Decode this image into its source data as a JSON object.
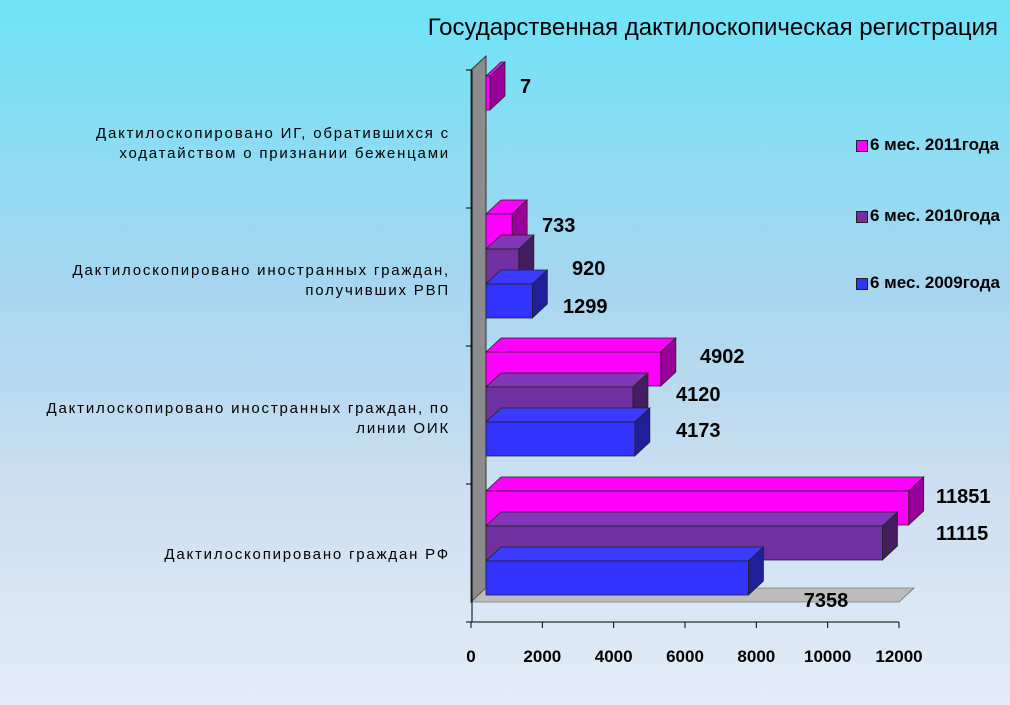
{
  "chart_data": {
    "type": "bar",
    "orientation": "horizontal",
    "title": "Государственная дактилоскопическая регистрация",
    "categories": [
      "Дактилоскопировано граждан РФ",
      "Дактилоскопировано иностранных граждан, по линии ОИК",
      "Дактилоскопировано иностранных граждан, получивших РВП",
      "Дактилоскопировано ИГ, обратившихся с ходатайством о признании беженцами"
    ],
    "series": [
      {
        "name": "6 мес. 2011года",
        "color": "#ff00ff",
        "values": [
          11851,
          4902,
          733,
          7
        ]
      },
      {
        "name": "6 мес. 2010года",
        "color": "#7030a0",
        "values": [
          11115,
          4120,
          920,
          null
        ]
      },
      {
        "name": "6 мес. 2009года",
        "color": "#3333ff",
        "values": [
          7358,
          4173,
          1299,
          null
        ]
      }
    ],
    "xticks": [
      "0",
      "2000",
      "4000",
      "6000",
      "8000",
      "10000",
      "12000"
    ],
    "xlim": [
      0,
      12000
    ],
    "legend": "right",
    "grid": false
  }
}
